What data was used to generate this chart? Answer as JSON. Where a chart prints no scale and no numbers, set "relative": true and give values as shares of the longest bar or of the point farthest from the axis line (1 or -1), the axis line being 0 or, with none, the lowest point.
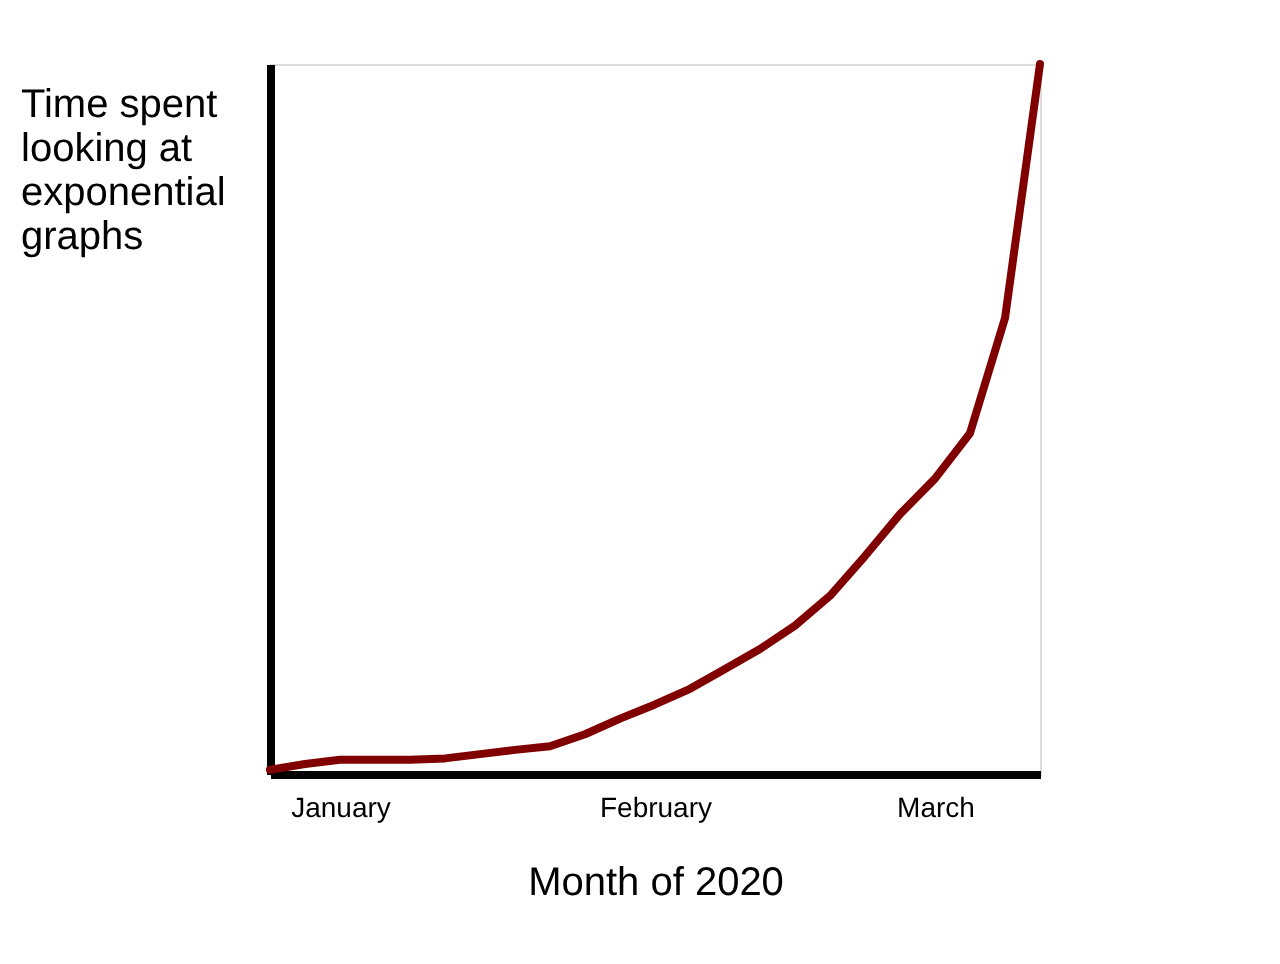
{
  "chart_data": {
    "type": "line",
    "relative": true,
    "ylabel": "Time spent looking at exponential graphs",
    "xlabel": "Month of 2020",
    "categories": [
      null,
      null,
      "January",
      null,
      null,
      null,
      null,
      null,
      null,
      null,
      null,
      "February",
      null,
      null,
      null,
      null,
      null,
      null,
      null,
      "March",
      null,
      null,
      null
    ],
    "series": [
      {
        "color": "#800000",
        "values": [
          0.006,
          0.014,
          0.02,
          0.02,
          0.02,
          0.022,
          0.028,
          0.034,
          0.039,
          0.056,
          0.078,
          0.098,
          0.12,
          0.148,
          0.176,
          0.209,
          0.251,
          0.307,
          0.366,
          0.416,
          0.48,
          0.642,
          1
        ]
      }
    ],
    "grid": false,
    "legend": false,
    "marker": "none",
    "line_style": "solid"
  }
}
